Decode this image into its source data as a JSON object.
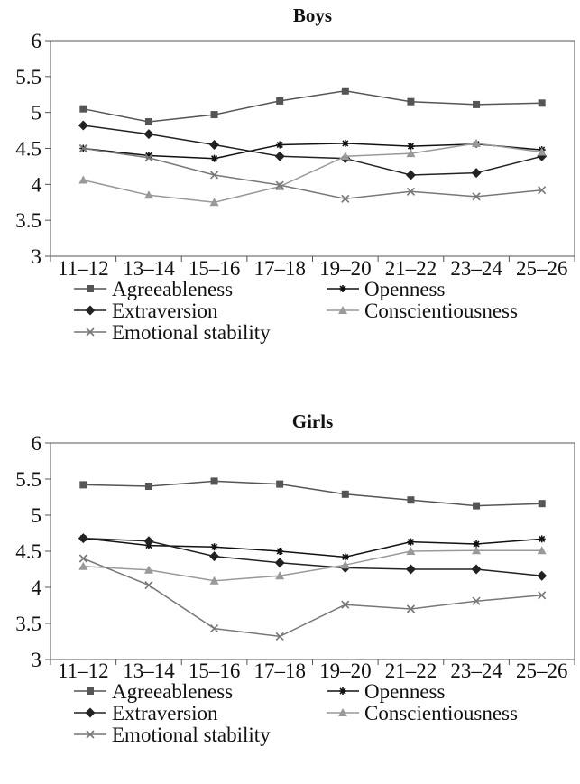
{
  "chart_data": [
    {
      "type": "line",
      "title": "Boys",
      "categories": [
        "11–12",
        "13–14",
        "15–16",
        "17–18",
        "19–20",
        "21–22",
        "23–24",
        "25–26"
      ],
      "yticks": [
        "3",
        "3.5",
        "4",
        "4.5",
        "5",
        "5.5",
        "6"
      ],
      "ylim": [
        3,
        6
      ],
      "legend": "bottom",
      "series": [
        {
          "name": "Agreeableness",
          "color": "#555555",
          "marker": "square",
          "values": [
            5.05,
            4.87,
            4.97,
            5.16,
            5.3,
            5.15,
            5.11,
            5.13
          ]
        },
        {
          "name": "Openness",
          "color": "#111111",
          "marker": "star",
          "values": [
            4.5,
            4.4,
            4.36,
            4.55,
            4.57,
            4.53,
            4.56,
            4.48
          ]
        },
        {
          "name": "Extraversion",
          "color": "#222222",
          "marker": "diamond",
          "values": [
            4.82,
            4.7,
            4.55,
            4.39,
            4.36,
            4.13,
            4.16,
            4.39
          ]
        },
        {
          "name": "Conscientiousness",
          "color": "#999999",
          "marker": "triangle",
          "values": [
            4.06,
            3.85,
            3.75,
            3.97,
            4.39,
            4.43,
            4.57,
            4.45
          ]
        },
        {
          "name": "Emotional stability",
          "color": "#777777",
          "marker": "x",
          "values": [
            4.5,
            4.37,
            4.13,
            3.99,
            3.8,
            3.9,
            3.83,
            3.92
          ]
        }
      ]
    },
    {
      "type": "line",
      "title": "Girls",
      "categories": [
        "11–12",
        "13–14",
        "15–16",
        "17–18",
        "19–20",
        "21–22",
        "23–24",
        "25–26"
      ],
      "yticks": [
        "3",
        "3.5",
        "4",
        "4.5",
        "5",
        "5.5",
        "6"
      ],
      "ylim": [
        3,
        6
      ],
      "legend": "bottom",
      "series": [
        {
          "name": "Agreeableness",
          "color": "#555555",
          "marker": "square",
          "values": [
            5.42,
            5.4,
            5.47,
            5.43,
            5.29,
            5.21,
            5.13,
            5.16
          ]
        },
        {
          "name": "Openness",
          "color": "#111111",
          "marker": "star",
          "values": [
            4.68,
            4.58,
            4.56,
            4.5,
            4.42,
            4.63,
            4.6,
            4.67
          ]
        },
        {
          "name": "Extraversion",
          "color": "#222222",
          "marker": "diamond",
          "values": [
            4.68,
            4.64,
            4.43,
            4.34,
            4.27,
            4.25,
            4.25,
            4.16
          ]
        },
        {
          "name": "Conscientiousness",
          "color": "#999999",
          "marker": "triangle",
          "values": [
            4.29,
            4.24,
            4.09,
            4.16,
            4.31,
            4.5,
            4.51,
            4.51
          ]
        },
        {
          "name": "Emotional stability",
          "color": "#777777",
          "marker": "x",
          "values": [
            4.4,
            4.03,
            3.43,
            3.32,
            3.76,
            3.7,
            3.81,
            3.89
          ]
        }
      ]
    }
  ]
}
